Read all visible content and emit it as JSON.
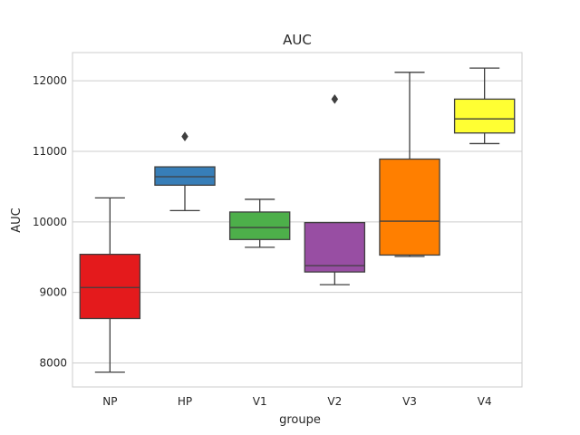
{
  "chart_data": {
    "type": "box",
    "title": "AUC",
    "xlabel": "groupe",
    "ylabel": "AUC",
    "ylim": [
      7660,
      12400
    ],
    "yticks": [
      8000,
      9000,
      10000,
      11000,
      12000
    ],
    "grid": true,
    "legend": "none",
    "categories": [
      "NP",
      "HP",
      "V1",
      "V2",
      "V3",
      "V4"
    ],
    "boxes": [
      {
        "name": "NP",
        "color": "#e41a1c",
        "whisker_low": 7870,
        "q1": 8630,
        "median": 9070,
        "q3": 9540,
        "whisker_high": 10340,
        "outliers": []
      },
      {
        "name": "HP",
        "color": "#377eb8",
        "whisker_low": 10160,
        "q1": 10520,
        "median": 10640,
        "q3": 10780,
        "whisker_high": 10780,
        "outliers": [
          11210
        ]
      },
      {
        "name": "V1",
        "color": "#4daf4a",
        "whisker_low": 9640,
        "q1": 9750,
        "median": 9920,
        "q3": 10140,
        "whisker_high": 10320,
        "outliers": []
      },
      {
        "name": "V2",
        "color": "#984ea3",
        "whisker_low": 9110,
        "q1": 9290,
        "median": 9380,
        "q3": 9990,
        "whisker_high": 9990,
        "outliers": [
          11740
        ]
      },
      {
        "name": "V3",
        "color": "#ff7f00",
        "whisker_low": 9510,
        "q1": 9530,
        "median": 10010,
        "q3": 10890,
        "whisker_high": 12120,
        "outliers": []
      },
      {
        "name": "V4",
        "color": "#ffff33",
        "whisker_low": 11110,
        "q1": 11260,
        "median": 11460,
        "q3": 11740,
        "whisker_high": 12180,
        "outliers": []
      }
    ]
  }
}
